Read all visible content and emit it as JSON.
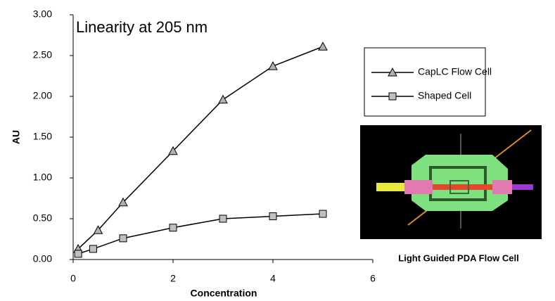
{
  "chart_data": {
    "type": "line",
    "title": "Linearity at 205 nm",
    "xlabel": "Concentration",
    "ylabel": "AU",
    "xlim": [
      0,
      6
    ],
    "xticks": [
      0,
      2,
      4,
      6
    ],
    "ylim": [
      0,
      3
    ],
    "yticks": [
      {
        "value": 0,
        "label": "0.00"
      },
      {
        "value": 0.5,
        "label": "0.50"
      },
      {
        "value": 1,
        "label": "1.00"
      },
      {
        "value": 1.5,
        "label": "1.50"
      },
      {
        "value": 2,
        "label": "2.00"
      },
      {
        "value": 2.5,
        "label": "2.50"
      },
      {
        "value": 3,
        "label": "3.00"
      }
    ],
    "series": [
      {
        "name": "CapLC Flow Cell",
        "color": "#000000",
        "marker": "triangle",
        "marker_color": "#b0b0b0",
        "x": [
          0.1,
          0.5,
          1,
          2,
          3,
          4,
          5
        ],
        "values": [
          0.13,
          0.36,
          0.7,
          1.33,
          1.96,
          2.37,
          2.61
        ]
      },
      {
        "name": "Shaped Cell",
        "color": "#000000",
        "marker": "square",
        "marker_color": "#c0c0c0",
        "x": [
          0.1,
          0.4,
          1,
          2,
          3,
          4,
          5
        ],
        "values": [
          0.07,
          0.13,
          0.26,
          0.39,
          0.5,
          0.53,
          0.56
        ]
      }
    ],
    "inset_caption": "Light Guided PDA Flow Cell"
  }
}
